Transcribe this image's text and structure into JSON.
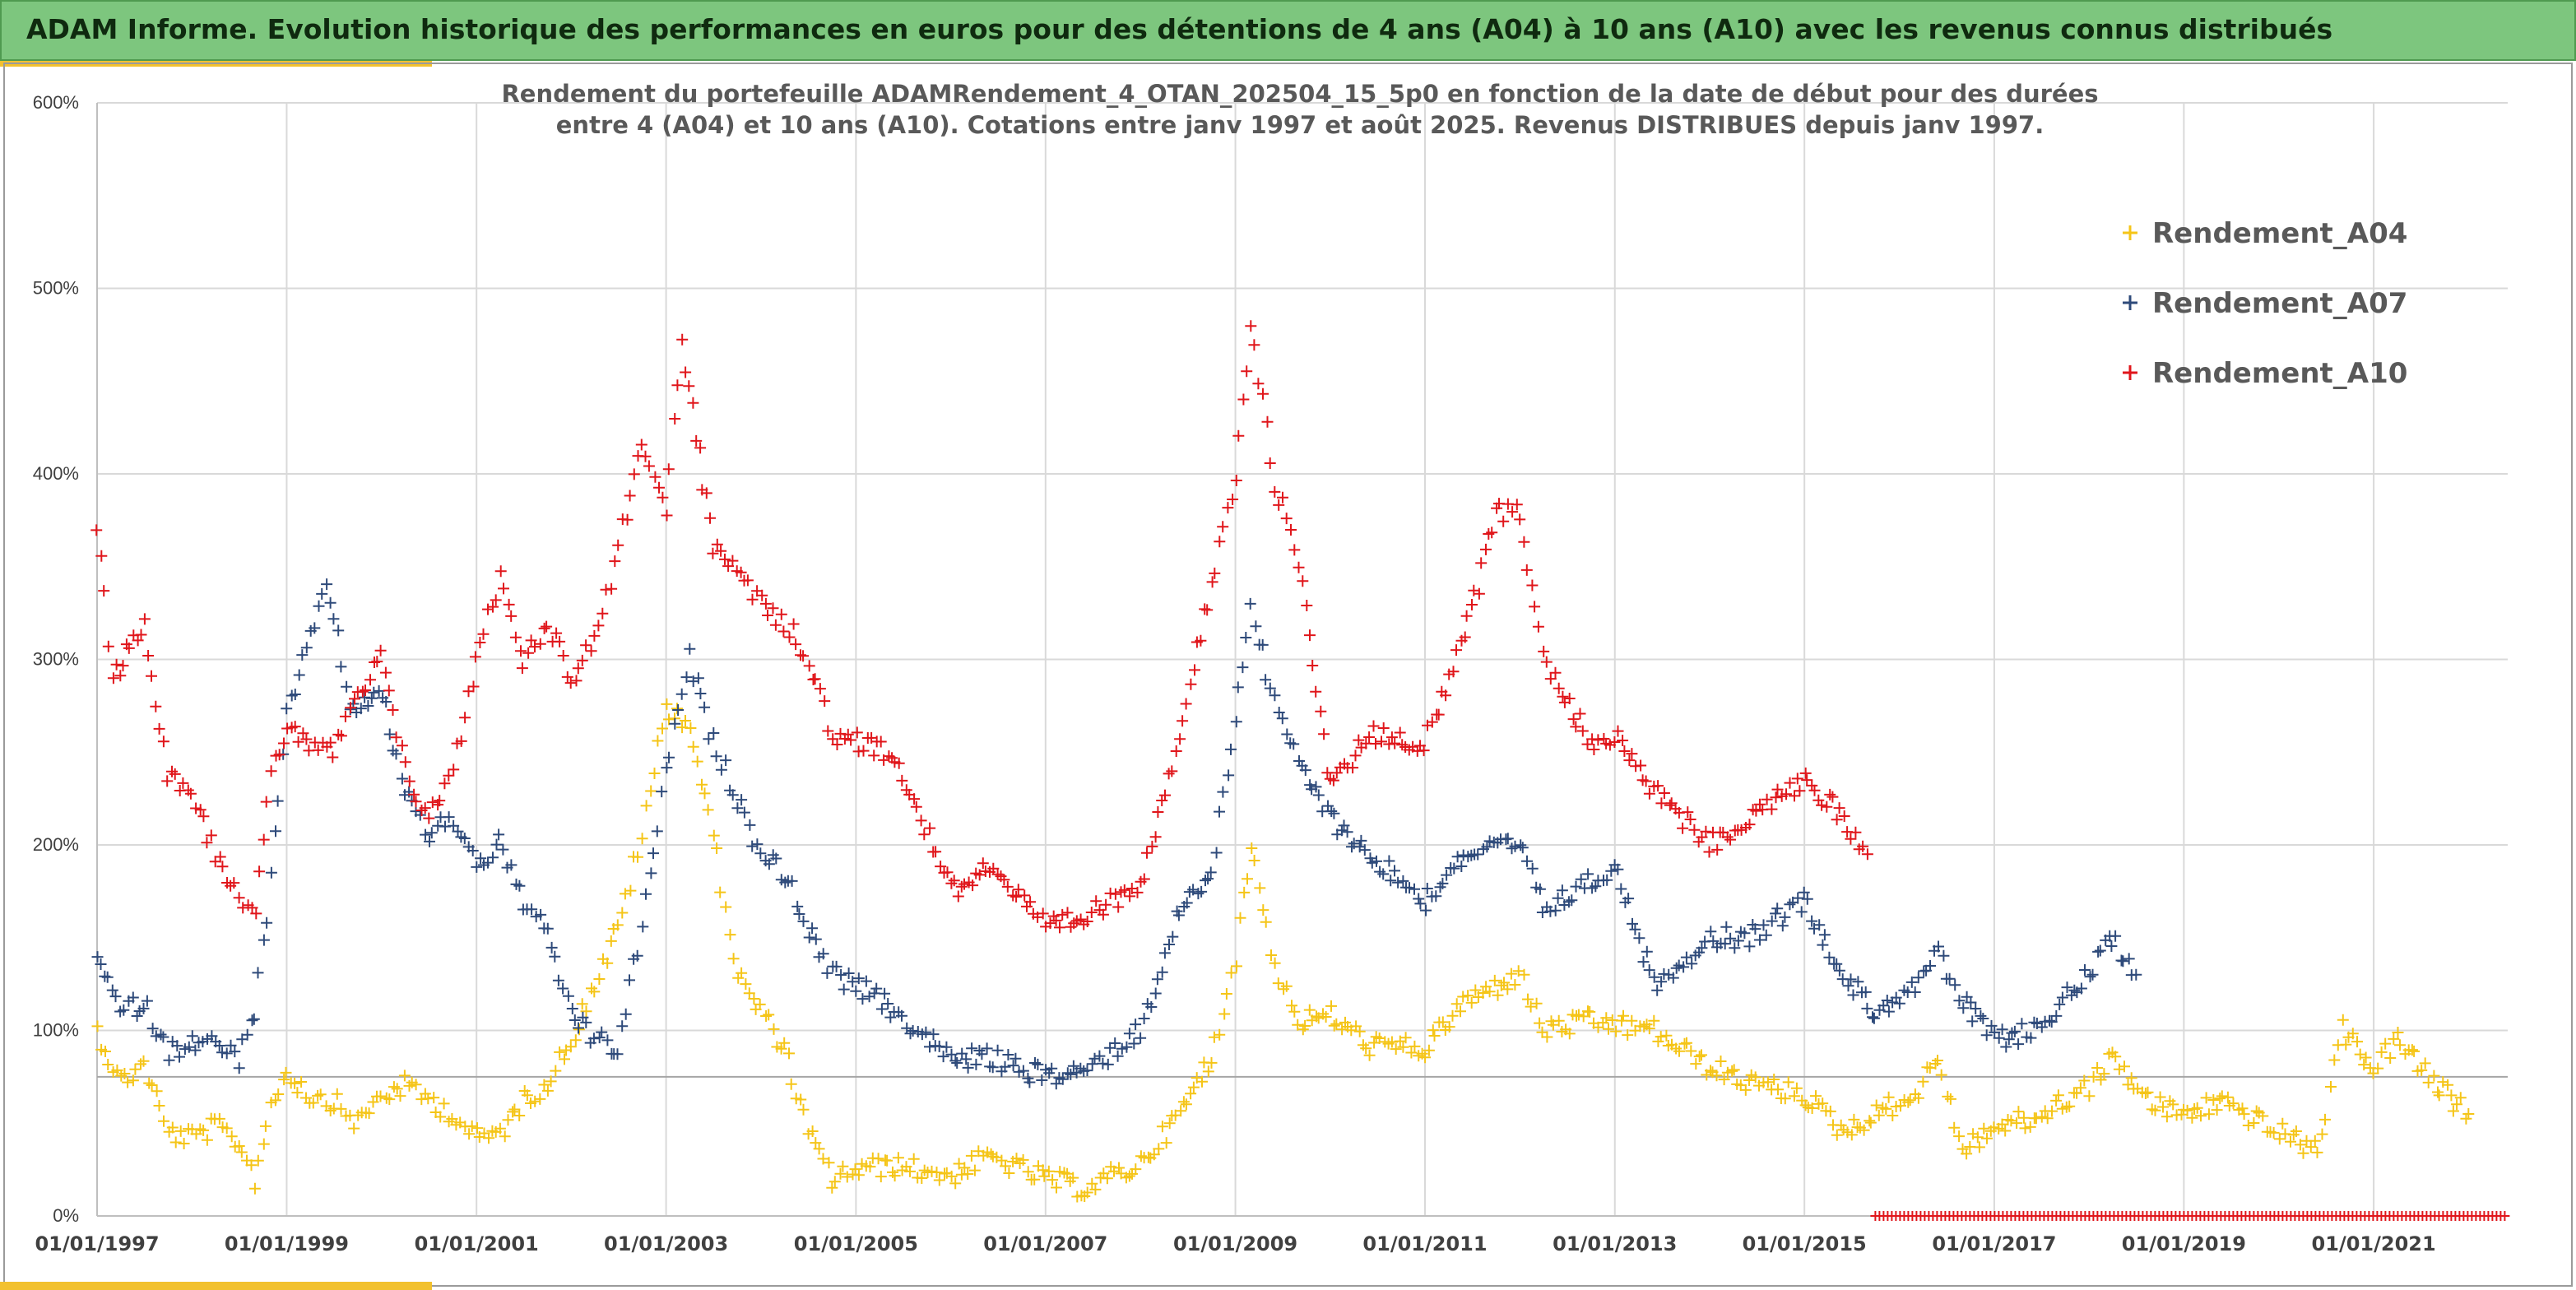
{
  "header": {
    "title": "ADAM Informe. Evolution historique des performances en euros pour des détentions de 4 ans (A04) à 10 ans (A10) avec les revenus connus distribués"
  },
  "chart_data": {
    "type": "scatter",
    "title_lines": [
      "Rendement du portefeuille ADAMRendement_4_OTAN_202504_15_5p0  en fonction de la date de début pour des durées",
      "entre 4 (A04) et 10 ans (A10). Cotations entre janv 1997 et août 2025. Revenus DISTRIBUES depuis janv 1997."
    ],
    "xlabel": "",
    "ylabel": "",
    "x_range": [
      "1997-01-01",
      "2022-06-01"
    ],
    "x_tick_labels": [
      "01/01/1997",
      "01/01/1999",
      "01/01/2001",
      "01/01/2003",
      "01/01/2005",
      "01/01/2007",
      "01/01/2009",
      "01/01/2011",
      "01/01/2013",
      "01/01/2015",
      "01/01/2017",
      "01/01/2019",
      "01/01/2021"
    ],
    "ylim": [
      0,
      600
    ],
    "y_tick_labels": [
      "0%",
      "100%",
      "200%",
      "300%",
      "400%",
      "500%",
      "600%"
    ],
    "reference_line_y": 75,
    "grid": true,
    "legend_position": "top-right",
    "marker": "+",
    "series": [
      {
        "name": "Rendement_A04",
        "color": "#f5c518",
        "points": [
          [
            "1997-01-01",
            100
          ],
          [
            "1997-04-01",
            72
          ],
          [
            "1997-07-01",
            82
          ],
          [
            "1997-10-01",
            45
          ],
          [
            "1998-01-01",
            42
          ],
          [
            "1998-04-01",
            48
          ],
          [
            "1998-07-01",
            40
          ],
          [
            "1998-09-01",
            20
          ],
          [
            "1998-11-01",
            60
          ],
          [
            "1999-01-01",
            78
          ],
          [
            "1999-04-01",
            65
          ],
          [
            "1999-07-01",
            62
          ],
          [
            "1999-10-01",
            50
          ],
          [
            "2000-01-01",
            65
          ],
          [
            "2000-04-01",
            70
          ],
          [
            "2000-07-01",
            63
          ],
          [
            "2000-10-01",
            55
          ],
          [
            "2001-01-01",
            42
          ],
          [
            "2001-04-01",
            45
          ],
          [
            "2001-07-01",
            62
          ],
          [
            "2001-10-01",
            72
          ],
          [
            "2002-01-01",
            95
          ],
          [
            "2002-04-01",
            125
          ],
          [
            "2002-07-01",
            155
          ],
          [
            "2002-10-01",
            205
          ],
          [
            "2003-01-01",
            275
          ],
          [
            "2003-04-01",
            265
          ],
          [
            "2003-07-01",
            205
          ],
          [
            "2003-10-01",
            130
          ],
          [
            "2004-01-01",
            110
          ],
          [
            "2004-04-01",
            90
          ],
          [
            "2004-07-01",
            45
          ],
          [
            "2004-10-01",
            20
          ],
          [
            "2005-01-01",
            25
          ],
          [
            "2005-06-01",
            27
          ],
          [
            "2006-01-01",
            22
          ],
          [
            "2006-06-01",
            32
          ],
          [
            "2007-01-01",
            20
          ],
          [
            "2007-06-01",
            15
          ],
          [
            "2008-01-01",
            28
          ],
          [
            "2008-06-01",
            55
          ],
          [
            "2008-10-01",
            85
          ],
          [
            "2009-01-01",
            140
          ],
          [
            "2009-03-01",
            200
          ],
          [
            "2009-06-01",
            135
          ],
          [
            "2009-09-01",
            105
          ],
          [
            "2010-01-01",
            108
          ],
          [
            "2010-06-01",
            92
          ],
          [
            "2011-01-01",
            90
          ],
          [
            "2011-06-01",
            115
          ],
          [
            "2012-01-01",
            130
          ],
          [
            "2012-04-01",
            100
          ],
          [
            "2012-10-01",
            105
          ],
          [
            "2013-06-01",
            100
          ],
          [
            "2014-01-01",
            80
          ],
          [
            "2014-06-01",
            72
          ],
          [
            "2015-01-01",
            65
          ],
          [
            "2015-06-01",
            45
          ],
          [
            "2015-10-01",
            55
          ],
          [
            "2016-03-01",
            65
          ],
          [
            "2016-06-01",
            85
          ],
          [
            "2016-09-01",
            35
          ],
          [
            "2017-01-01",
            48
          ],
          [
            "2017-06-01",
            52
          ],
          [
            "2018-01-01",
            70
          ],
          [
            "2018-04-01",
            85
          ],
          [
            "2018-09-01",
            60
          ],
          [
            "2019-01-01",
            55
          ],
          [
            "2019-06-01",
            62
          ],
          [
            "2020-01-01",
            45
          ],
          [
            "2020-06-01",
            35
          ],
          [
            "2020-09-01",
            100
          ],
          [
            "2021-01-01",
            80
          ],
          [
            "2021-04-01",
            95
          ],
          [
            "2021-09-01",
            70
          ],
          [
            "2022-01-01",
            55
          ]
        ]
      },
      {
        "name": "Rendement_A07",
        "color": "#2e4a7a",
        "points": [
          [
            "1997-01-01",
            140
          ],
          [
            "1997-04-01",
            110
          ],
          [
            "1997-07-01",
            115
          ],
          [
            "1997-10-01",
            88
          ],
          [
            "1998-01-01",
            95
          ],
          [
            "1998-04-01",
            92
          ],
          [
            "1998-07-01",
            85
          ],
          [
            "1998-09-01",
            110
          ],
          [
            "1998-11-01",
            180
          ],
          [
            "1999-01-01",
            270
          ],
          [
            "1999-04-01",
            310
          ],
          [
            "1999-06-01",
            345
          ],
          [
            "1999-09-01",
            275
          ],
          [
            "2000-01-01",
            280
          ],
          [
            "2000-04-01",
            230
          ],
          [
            "2000-07-01",
            205
          ],
          [
            "2000-10-01",
            215
          ],
          [
            "2001-01-01",
            190
          ],
          [
            "2001-04-01",
            200
          ],
          [
            "2001-07-01",
            170
          ],
          [
            "2001-10-01",
            150
          ],
          [
            "2002-01-01",
            110
          ],
          [
            "2002-04-01",
            95
          ],
          [
            "2002-07-01",
            90
          ],
          [
            "2002-10-01",
            155
          ],
          [
            "2003-01-01",
            240
          ],
          [
            "2003-04-01",
            300
          ],
          [
            "2003-07-01",
            255
          ],
          [
            "2003-10-01",
            225
          ],
          [
            "2004-01-01",
            195
          ],
          [
            "2004-04-01",
            185
          ],
          [
            "2004-07-01",
            155
          ],
          [
            "2004-10-01",
            130
          ],
          [
            "2005-01-01",
            125
          ],
          [
            "2005-06-01",
            110
          ],
          [
            "2006-01-01",
            85
          ],
          [
            "2006-06-01",
            85
          ],
          [
            "2007-01-01",
            75
          ],
          [
            "2007-06-01",
            78
          ],
          [
            "2008-01-01",
            100
          ],
          [
            "2008-06-01",
            165
          ],
          [
            "2008-10-01",
            185
          ],
          [
            "2009-01-01",
            270
          ],
          [
            "2009-03-01",
            330
          ],
          [
            "2009-06-01",
            275
          ],
          [
            "2009-09-01",
            245
          ],
          [
            "2010-01-01",
            215
          ],
          [
            "2010-06-01",
            195
          ],
          [
            "2011-01-01",
            170
          ],
          [
            "2011-06-01",
            195
          ],
          [
            "2012-01-01",
            200
          ],
          [
            "2012-04-01",
            165
          ],
          [
            "2012-10-01",
            180
          ],
          [
            "2013-01-01",
            190
          ],
          [
            "2013-06-01",
            125
          ],
          [
            "2014-01-01",
            150
          ],
          [
            "2014-06-01",
            150
          ],
          [
            "2015-01-01",
            170
          ],
          [
            "2015-06-01",
            130
          ],
          [
            "2015-10-01",
            110
          ],
          [
            "2016-03-01",
            125
          ],
          [
            "2016-06-01",
            140
          ],
          [
            "2016-09-01",
            115
          ],
          [
            "2017-01-01",
            95
          ],
          [
            "2017-06-01",
            100
          ],
          [
            "2018-01-01",
            130
          ],
          [
            "2018-04-01",
            150
          ],
          [
            "2018-07-01",
            130
          ]
        ]
      },
      {
        "name": "Rendement_A10",
        "color": "#e0161b",
        "points": [
          [
            "1997-01-01",
            375
          ],
          [
            "1997-03-01",
            290
          ],
          [
            "1997-07-01",
            320
          ],
          [
            "1997-10-01",
            240
          ],
          [
            "1998-01-01",
            230
          ],
          [
            "1998-04-01",
            195
          ],
          [
            "1998-07-01",
            175
          ],
          [
            "1998-09-01",
            160
          ],
          [
            "1998-11-01",
            240
          ],
          [
            "1999-01-01",
            265
          ],
          [
            "1999-04-01",
            255
          ],
          [
            "1999-07-01",
            250
          ],
          [
            "1999-10-01",
            280
          ],
          [
            "2000-01-01",
            300
          ],
          [
            "2000-04-01",
            240
          ],
          [
            "2000-07-01",
            215
          ],
          [
            "2000-10-01",
            240
          ],
          [
            "2001-01-01",
            300
          ],
          [
            "2001-04-01",
            345
          ],
          [
            "2001-07-01",
            300
          ],
          [
            "2001-10-01",
            320
          ],
          [
            "2002-01-01",
            290
          ],
          [
            "2002-04-01",
            310
          ],
          [
            "2002-07-01",
            360
          ],
          [
            "2002-10-01",
            420
          ],
          [
            "2003-01-01",
            380
          ],
          [
            "2003-03-01",
            470
          ],
          [
            "2003-07-01",
            360
          ],
          [
            "2003-10-01",
            350
          ],
          [
            "2004-01-01",
            330
          ],
          [
            "2004-04-01",
            320
          ],
          [
            "2004-07-01",
            300
          ],
          [
            "2004-10-01",
            260
          ],
          [
            "2005-01-01",
            255
          ],
          [
            "2005-06-01",
            250
          ],
          [
            "2006-01-01",
            175
          ],
          [
            "2006-06-01",
            190
          ],
          [
            "2007-01-01",
            155
          ],
          [
            "2007-06-01",
            160
          ],
          [
            "2008-01-01",
            180
          ],
          [
            "2008-06-01",
            260
          ],
          [
            "2008-10-01",
            340
          ],
          [
            "2009-01-01",
            395
          ],
          [
            "2009-03-01",
            480
          ],
          [
            "2009-06-01",
            395
          ],
          [
            "2009-09-01",
            355
          ],
          [
            "2010-01-01",
            230
          ],
          [
            "2010-06-01",
            260
          ],
          [
            "2011-01-01",
            255
          ],
          [
            "2011-06-01",
            310
          ],
          [
            "2011-10-01",
            380
          ],
          [
            "2012-01-01",
            380
          ],
          [
            "2012-04-01",
            300
          ],
          [
            "2012-10-01",
            255
          ],
          [
            "2013-01-01",
            260
          ],
          [
            "2013-06-01",
            230
          ],
          [
            "2014-01-01",
            200
          ],
          [
            "2014-06-01",
            215
          ],
          [
            "2015-01-01",
            235
          ],
          [
            "2015-06-01",
            215
          ],
          [
            "2015-09-01",
            195
          ]
        ]
      },
      {
        "name": "",
        "color": "#e0161b",
        "points": [
          [
            "2015-10-01",
            0
          ],
          [
            "2022-06-01",
            0
          ]
        ],
        "dense_band": true
      }
    ]
  }
}
